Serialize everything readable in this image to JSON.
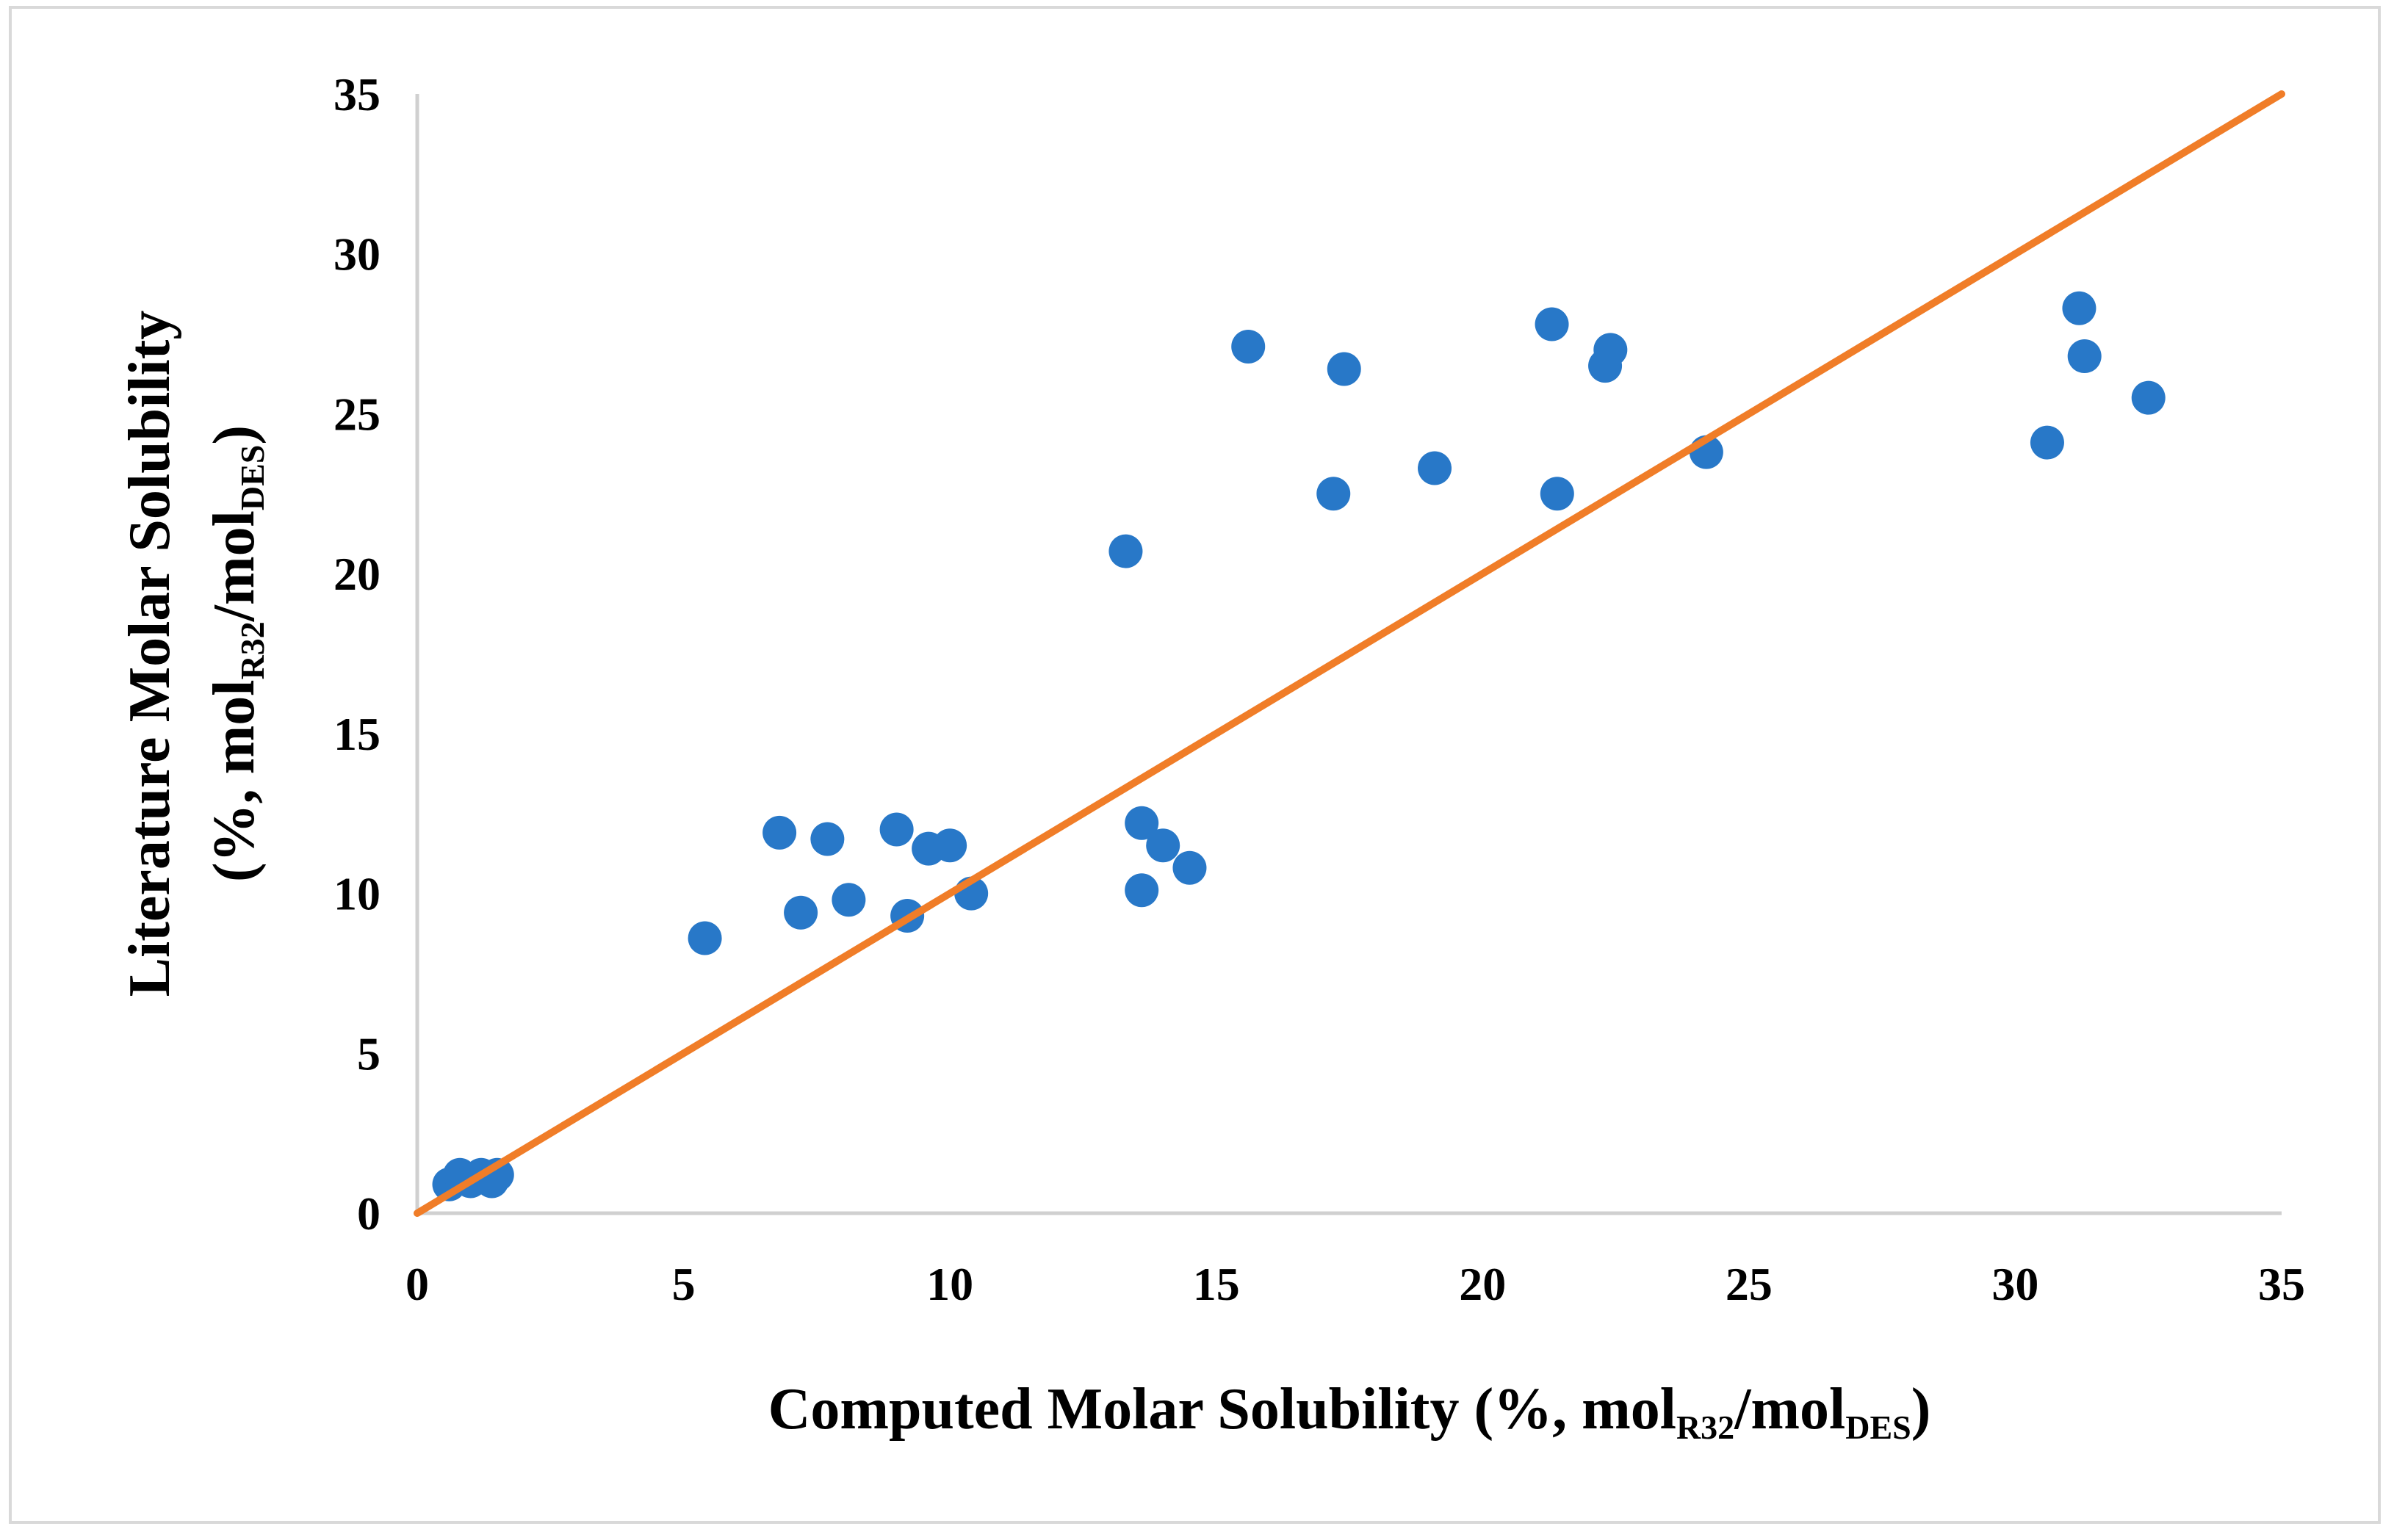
{
  "chart_data": {
    "type": "scatter",
    "xlabel": {
      "prefix": "Computed Molar Solubility (%, mol",
      "sub1": "R32",
      "mid": "/mol",
      "sub2": "DES",
      "suffix": ")"
    },
    "ylabel": {
      "line1": "Literature Molar Solubility",
      "line2_prefix": "(%, mol",
      "sub1": "R32",
      "mid": "/mol",
      "sub2": "DES",
      "suffix": ")"
    },
    "xlim": [
      0,
      35
    ],
    "ylim": [
      0,
      35
    ],
    "xticks": [
      "0",
      "5",
      "10",
      "15",
      "20",
      "25",
      "30",
      "35"
    ],
    "yticks": [
      "0",
      "5",
      "10",
      "15",
      "20",
      "25",
      "30",
      "35"
    ],
    "grid": false,
    "legend": "none",
    "series": [
      {
        "color": "#2878c8",
        "marker": "circle",
        "points": [
          [
            0.6,
            0.9
          ],
          [
            0.8,
            1.2
          ],
          [
            1.0,
            1.0
          ],
          [
            1.2,
            1.2
          ],
          [
            1.4,
            1.0
          ],
          [
            1.5,
            1.2
          ],
          [
            5.4,
            8.6
          ],
          [
            6.8,
            11.9
          ],
          [
            7.2,
            9.4
          ],
          [
            7.7,
            11.7
          ],
          [
            8.1,
            9.8
          ],
          [
            9.0,
            12.0
          ],
          [
            9.2,
            9.3
          ],
          [
            9.6,
            11.4
          ],
          [
            10.0,
            11.5
          ],
          [
            10.4,
            10.0
          ],
          [
            13.3,
            20.7
          ],
          [
            13.6,
            12.2
          ],
          [
            13.6,
            10.1
          ],
          [
            14.0,
            11.5
          ],
          [
            14.5,
            10.8
          ],
          [
            15.6,
            27.1
          ],
          [
            17.2,
            22.5
          ],
          [
            17.4,
            26.4
          ],
          [
            19.1,
            23.3
          ],
          [
            21.3,
            27.8
          ],
          [
            21.4,
            22.5
          ],
          [
            22.3,
            26.5
          ],
          [
            22.4,
            27.0
          ],
          [
            24.2,
            23.8
          ],
          [
            30.6,
            24.1
          ],
          [
            31.2,
            28.3
          ],
          [
            31.3,
            26.8
          ],
          [
            32.5,
            25.5
          ]
        ]
      },
      {
        "color": "#f07d28",
        "type": "line",
        "points": [
          [
            0,
            0
          ],
          [
            35,
            35
          ]
        ]
      }
    ]
  }
}
